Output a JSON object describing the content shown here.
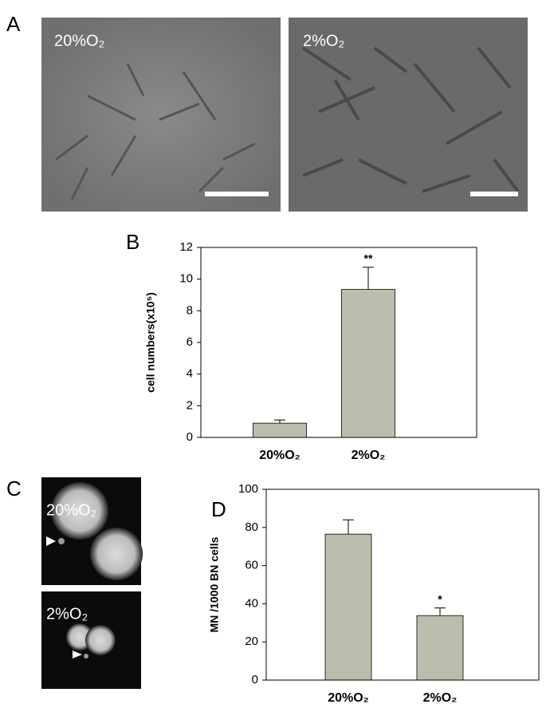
{
  "panels": {
    "a": {
      "label": "A",
      "images": [
        "20%O₂",
        "2%O₂"
      ]
    },
    "c": {
      "label": "C",
      "images": [
        "20%O₂",
        "2%O₂"
      ]
    }
  },
  "chart_data": [
    {
      "type": "bar",
      "panel": "B",
      "y_label": "cell numbers(x10⁵)",
      "categories": [
        "20%O₂",
        "2%O₂"
      ],
      "values": [
        0.9,
        9.35
      ],
      "errors": [
        0.2,
        1.4
      ],
      "significance": [
        null,
        "**"
      ],
      "color": "#bdbdad",
      "ylim": [
        0,
        12
      ],
      "yticks": [
        0,
        2,
        4,
        6,
        8,
        10,
        12
      ]
    },
    {
      "type": "bar",
      "panel": "D",
      "y_label": "MN /1000 BN cells",
      "categories": [
        "20%O₂",
        "2%O₂"
      ],
      "values": [
        76.5,
        33.8
      ],
      "errors": [
        7.5,
        4
      ],
      "significance": [
        null,
        "*"
      ],
      "color": "#bdbdad",
      "ylim": [
        0,
        100
      ],
      "yticks": [
        0,
        20,
        40,
        60,
        80,
        100
      ]
    }
  ]
}
